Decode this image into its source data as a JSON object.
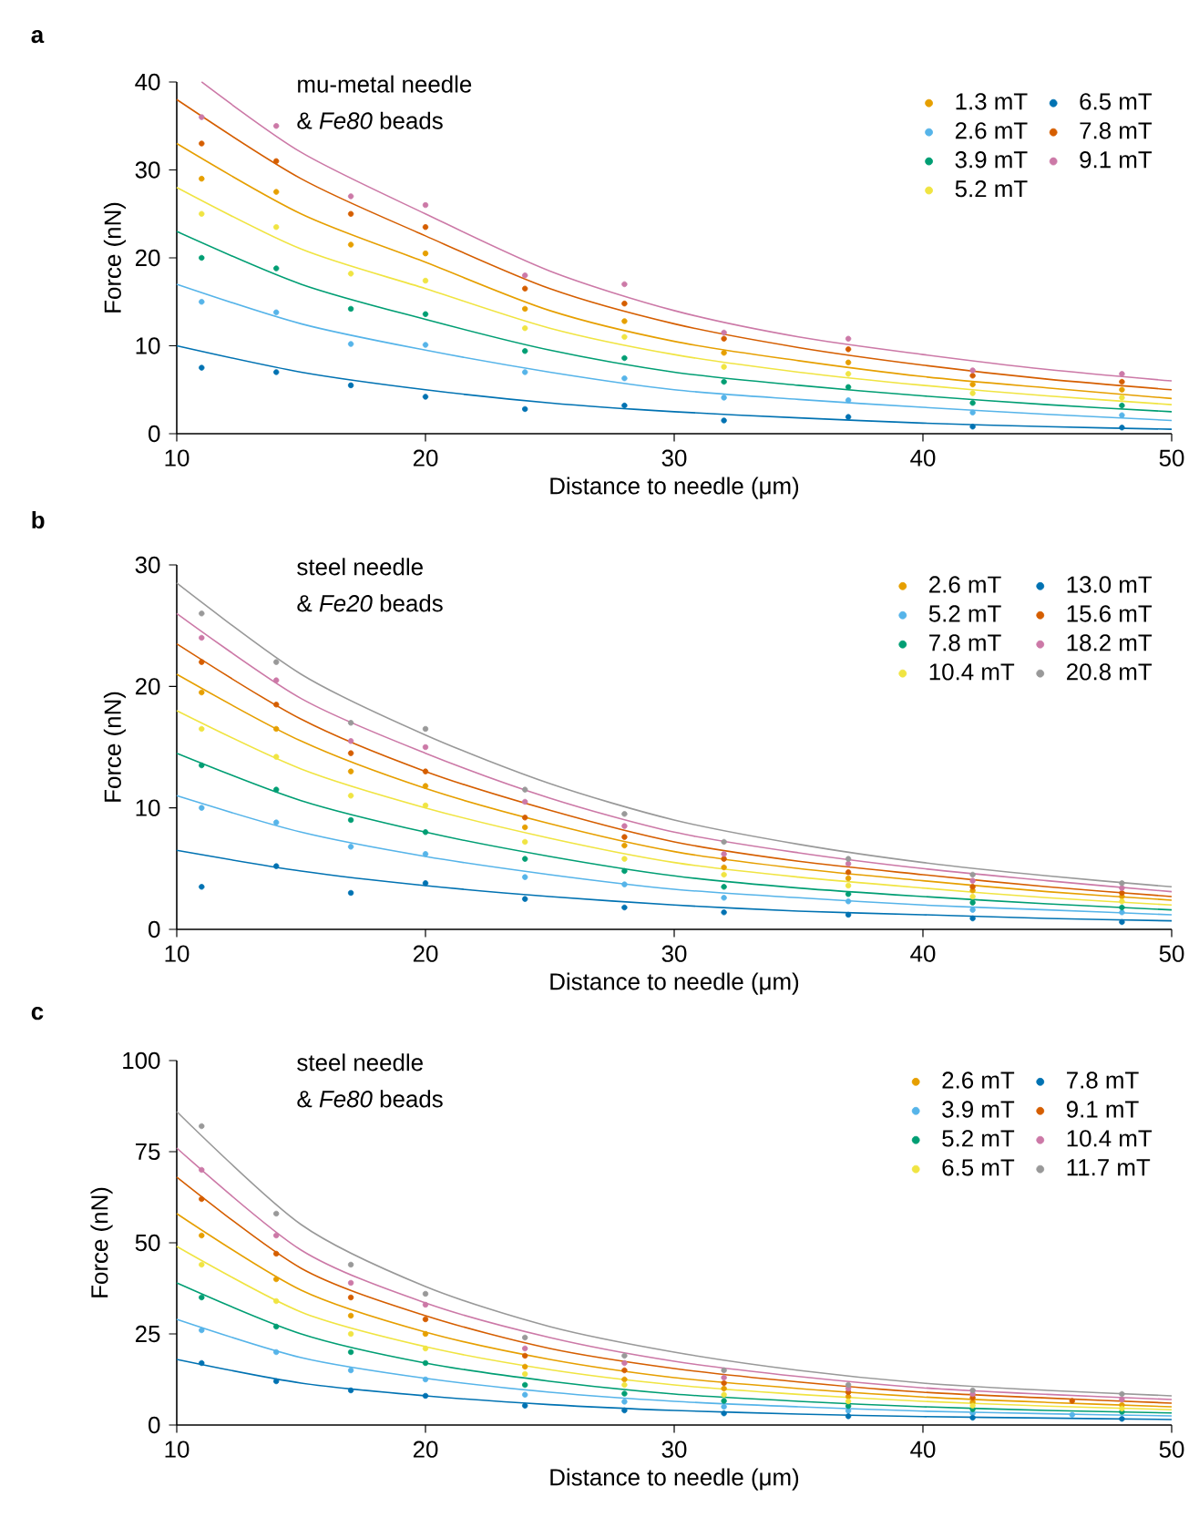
{
  "chart_data": [
    {
      "type": "scatter",
      "title": "a",
      "xlabel": "Distance to needle (μm)",
      "ylabel": "Force (nN)",
      "annotations": [
        "mu-metal needle",
        "& *Fe80* beads"
      ],
      "xlim": [
        10,
        50
      ],
      "ylim": [
        0,
        40
      ],
      "xticks": [
        10,
        20,
        30,
        40,
        50
      ],
      "yticks": [
        0,
        10,
        20,
        30,
        40
      ],
      "legend": "top right",
      "series": [
        {
          "name": "1.3 mT",
          "marker": "circle",
          "color": "#e69f00",
          "x": [
            11,
            14,
            17,
            20,
            24,
            28,
            32,
            37,
            42,
            48
          ],
          "values": [
            29,
            27.5,
            21.5,
            20.5,
            14.2,
            12.8,
            9.2,
            8.1,
            5.6,
            5
          ]
        },
        {
          "name": "2.6 mT",
          "marker": "circle",
          "color": "#56b4e9",
          "x": [
            11,
            14,
            17,
            20,
            24,
            28,
            32,
            37,
            42,
            48
          ],
          "values": [
            15,
            13.8,
            10.2,
            10.1,
            7,
            6.3,
            4.1,
            3.8,
            2.4,
            2.1
          ]
        },
        {
          "name": "3.9 mT",
          "marker": "circle",
          "color": "#009e73",
          "x": [
            11,
            14,
            17,
            20,
            24,
            28,
            32,
            37,
            42,
            48
          ],
          "values": [
            20,
            18.8,
            14.2,
            13.6,
            9.4,
            8.6,
            5.9,
            5.3,
            3.5,
            3.2
          ]
        },
        {
          "name": "5.2 mT",
          "marker": "circle",
          "color": "#f0e442",
          "x": [
            11,
            14,
            17,
            20,
            24,
            28,
            32,
            37,
            42,
            48
          ],
          "values": [
            25,
            23.5,
            18.2,
            17.4,
            12,
            11,
            7.6,
            6.8,
            4.6,
            4.1
          ]
        },
        {
          "name": "6.5 mT",
          "marker": "circle",
          "color": "#0072b2",
          "x": [
            11,
            14,
            17,
            20,
            24,
            28,
            32,
            37,
            42,
            48
          ],
          "values": [
            7.5,
            7,
            5.5,
            4.2,
            2.8,
            3.2,
            1.5,
            1.9,
            0.8,
            0.7
          ]
        },
        {
          "name": "7.8 mT",
          "marker": "circle",
          "color": "#d55e00",
          "x": [
            11,
            14,
            17,
            20,
            24,
            28,
            32,
            37,
            42,
            48
          ],
          "values": [
            33,
            31,
            25,
            23.5,
            16.5,
            14.8,
            10.8,
            9.6,
            6.6,
            5.9
          ]
        },
        {
          "name": "9.1 mT",
          "marker": "circle",
          "color": "#cc79a7",
          "x": [
            11,
            14,
            17,
            20,
            24,
            28,
            32,
            37,
            42,
            48
          ],
          "values": [
            36,
            35,
            27,
            26,
            18,
            17,
            11.5,
            10.8,
            7.2,
            6.8
          ]
        },
        {
          "type": "line",
          "marker": "none",
          "color": "#e69f00",
          "x": [
            10,
            15,
            20,
            25,
            30,
            35,
            40,
            45,
            50
          ],
          "values": [
            33,
            25,
            19.5,
            14,
            10.5,
            8.3,
            6.5,
            5.2,
            4
          ]
        },
        {
          "type": "line",
          "marker": "none",
          "color": "#56b4e9",
          "x": [
            10,
            15,
            20,
            25,
            30,
            35,
            40,
            45,
            50
          ],
          "values": [
            17,
            12.5,
            9.5,
            7,
            5,
            3.9,
            3,
            2.2,
            1.5
          ]
        },
        {
          "type": "line",
          "marker": "none",
          "color": "#009e73",
          "x": [
            10,
            15,
            20,
            25,
            30,
            35,
            40,
            45,
            50
          ],
          "values": [
            23,
            17,
            13,
            9.5,
            7,
            5.5,
            4.3,
            3.3,
            2.5
          ]
        },
        {
          "type": "line",
          "marker": "none",
          "color": "#f0e442",
          "x": [
            10,
            15,
            20,
            25,
            30,
            35,
            40,
            45,
            50
          ],
          "values": [
            28,
            21,
            16.5,
            12,
            9,
            7,
            5.5,
            4.3,
            3.3
          ]
        },
        {
          "type": "line",
          "marker": "none",
          "color": "#0072b2",
          "x": [
            10,
            15,
            20,
            25,
            30,
            35,
            40,
            45,
            50
          ],
          "values": [
            10,
            7,
            5,
            3.5,
            2.5,
            1.8,
            1.2,
            0.8,
            0.5
          ]
        },
        {
          "type": "line",
          "marker": "none",
          "color": "#d55e00",
          "x": [
            10,
            15,
            20,
            25,
            30,
            35,
            40,
            45,
            50
          ],
          "values": [
            38,
            29,
            22.5,
            16.5,
            12.5,
            9.8,
            7.8,
            6.2,
            5
          ]
        },
        {
          "type": "line",
          "marker": "none",
          "color": "#cc79a7",
          "x": [
            11,
            15,
            20,
            25,
            30,
            35,
            40,
            45,
            50
          ],
          "values": [
            40,
            32,
            25,
            18.5,
            14,
            11,
            9,
            7.3,
            6
          ]
        }
      ]
    },
    {
      "type": "scatter",
      "title": "b",
      "xlabel": "Distance to needle (μm)",
      "ylabel": "Force (nN)",
      "annotations": [
        "steel needle",
        "& *Fe20* beads"
      ],
      "xlim": [
        10,
        50
      ],
      "ylim": [
        0,
        30
      ],
      "xticks": [
        10,
        20,
        30,
        40,
        50
      ],
      "yticks": [
        0,
        10,
        20,
        30
      ],
      "legend": "top right",
      "series": [
        {
          "name": "2.6 mT",
          "marker": "circle",
          "color": "#e69f00",
          "x": [
            11,
            14,
            17,
            20,
            24,
            28,
            32,
            37,
            42,
            48
          ],
          "values": [
            19.5,
            16.5,
            13,
            11.8,
            8.4,
            6.9,
            5.1,
            4.2,
            3.2,
            2.7
          ]
        },
        {
          "name": "5.2 mT",
          "marker": "circle",
          "color": "#56b4e9",
          "x": [
            11,
            14,
            17,
            20,
            24,
            28,
            32,
            37,
            42,
            48
          ],
          "values": [
            10,
            8.8,
            6.8,
            6.2,
            4.3,
            3.7,
            2.6,
            2.3,
            1.6,
            1.4
          ]
        },
        {
          "name": "7.8 mT",
          "marker": "circle",
          "color": "#009e73",
          "x": [
            11,
            14,
            17,
            20,
            24,
            28,
            32,
            37,
            42,
            48
          ],
          "values": [
            13.5,
            11.5,
            9,
            8,
            5.8,
            4.8,
            3.5,
            2.9,
            2.2,
            1.8
          ]
        },
        {
          "name": "10.4 mT",
          "marker": "circle",
          "color": "#f0e442",
          "x": [
            11,
            14,
            17,
            20,
            24,
            28,
            32,
            37,
            42,
            48
          ],
          "values": [
            16.5,
            14.2,
            11,
            10.2,
            7.2,
            5.8,
            4.5,
            3.6,
            2.7,
            2.3
          ]
        },
        {
          "name": "13.0 mT",
          "marker": "circle",
          "color": "#0072b2",
          "x": [
            11,
            14,
            17,
            20,
            24,
            28,
            32,
            37,
            42,
            48
          ],
          "values": [
            3.5,
            5.2,
            3,
            3.8,
            2.5,
            1.8,
            1.4,
            1.2,
            0.9,
            0.6
          ]
        },
        {
          "name": "15.6 mT",
          "marker": "circle",
          "color": "#d55e00",
          "x": [
            11,
            14,
            17,
            20,
            24,
            28,
            32,
            37,
            42,
            48
          ],
          "values": [
            22,
            18.5,
            14.5,
            13,
            9.2,
            7.6,
            5.8,
            4.7,
            3.5,
            3
          ]
        },
        {
          "name": "18.2 mT",
          "marker": "circle",
          "color": "#cc79a7",
          "x": [
            11,
            14,
            17,
            20,
            24,
            28,
            32,
            37,
            42,
            48
          ],
          "values": [
            24,
            20.5,
            15.5,
            15,
            10.5,
            8.5,
            6.2,
            5.4,
            4,
            3.4
          ]
        },
        {
          "name": "20.8 mT",
          "marker": "circle",
          "color": "#999999",
          "x": [
            11,
            14,
            17,
            20,
            24,
            28,
            32,
            37,
            42,
            48
          ],
          "values": [
            26,
            22,
            17,
            16.5,
            11.5,
            9.5,
            7.2,
            5.8,
            4.5,
            3.8
          ]
        },
        {
          "type": "line",
          "marker": "none",
          "color": "#e69f00",
          "x": [
            10,
            15,
            20,
            25,
            30,
            35,
            40,
            45,
            50
          ],
          "values": [
            21,
            15.5,
            11.6,
            8.7,
            6.4,
            5,
            4,
            3.1,
            2.4
          ]
        },
        {
          "type": "line",
          "marker": "none",
          "color": "#56b4e9",
          "x": [
            10,
            15,
            20,
            25,
            30,
            35,
            40,
            45,
            50
          ],
          "values": [
            11,
            8,
            6,
            4.5,
            3.3,
            2.6,
            2,
            1.6,
            1.2
          ]
        },
        {
          "type": "line",
          "marker": "none",
          "color": "#009e73",
          "x": [
            10,
            15,
            20,
            25,
            30,
            35,
            40,
            45,
            50
          ],
          "values": [
            14.5,
            10.6,
            8,
            6,
            4.4,
            3.4,
            2.7,
            2.1,
            1.6
          ]
        },
        {
          "type": "line",
          "marker": "none",
          "color": "#f0e442",
          "x": [
            10,
            15,
            20,
            25,
            30,
            35,
            40,
            45,
            50
          ],
          "values": [
            18,
            13.2,
            10,
            7.5,
            5.5,
            4.3,
            3.4,
            2.6,
            2
          ]
        },
        {
          "type": "line",
          "marker": "none",
          "color": "#0072b2",
          "x": [
            10,
            15,
            20,
            25,
            30,
            35,
            40,
            45,
            50
          ],
          "values": [
            6.5,
            4.8,
            3.6,
            2.7,
            2,
            1.5,
            1.2,
            0.9,
            0.7
          ]
        },
        {
          "type": "line",
          "marker": "none",
          "color": "#d55e00",
          "x": [
            10,
            15,
            20,
            25,
            30,
            35,
            40,
            45,
            50
          ],
          "values": [
            23.5,
            17.3,
            13,
            9.8,
            7.2,
            5.6,
            4.5,
            3.5,
            2.7
          ]
        },
        {
          "type": "line",
          "marker": "none",
          "color": "#cc79a7",
          "x": [
            10,
            15,
            20,
            25,
            30,
            35,
            40,
            45,
            50
          ],
          "values": [
            26,
            19,
            14.5,
            10.8,
            8,
            6.3,
            5,
            4,
            3.1
          ]
        },
        {
          "type": "line",
          "marker": "none",
          "color": "#999999",
          "x": [
            10,
            15,
            20,
            25,
            30,
            35,
            40,
            45,
            50
          ],
          "values": [
            28.5,
            21,
            16,
            12,
            9,
            7,
            5.5,
            4.4,
            3.5
          ]
        }
      ]
    },
    {
      "type": "scatter",
      "title": "c",
      "xlabel": "Distance to needle (μm)",
      "ylabel": "Force (nN)",
      "annotations": [
        "steel needle",
        "& *Fe80* beads"
      ],
      "xlim": [
        10,
        50
      ],
      "ylim": [
        0,
        100
      ],
      "xticks": [
        10,
        20,
        30,
        40,
        50
      ],
      "yticks": [
        0,
        25,
        50,
        75,
        100
      ],
      "legend": "top right",
      "series": [
        {
          "name": "2.6 mT",
          "marker": "circle",
          "color": "#e69f00",
          "x": [
            11,
            14,
            17,
            20,
            24,
            28,
            32,
            37,
            42,
            48
          ],
          "values": [
            52,
            40,
            30,
            25,
            16,
            12.5,
            10,
            7.8,
            6.3,
            5.5
          ]
        },
        {
          "name": "3.9 mT",
          "marker": "circle",
          "color": "#56b4e9",
          "x": [
            11,
            14,
            17,
            20,
            24,
            28,
            32,
            37,
            42,
            46
          ],
          "values": [
            26,
            20,
            15,
            12.5,
            8.3,
            6.4,
            5,
            3.9,
            3.2,
            2.8
          ]
        },
        {
          "name": "5.2 mT",
          "marker": "circle",
          "color": "#009e73",
          "x": [
            11,
            14,
            17,
            20,
            24,
            28,
            32,
            37,
            42,
            48
          ],
          "values": [
            35,
            27,
            20,
            17,
            11,
            8.6,
            6.6,
            5.2,
            4.3,
            3.6
          ]
        },
        {
          "name": "6.5 mT",
          "marker": "circle",
          "color": "#f0e442",
          "x": [
            11,
            14,
            17,
            20,
            24,
            28,
            32,
            37,
            42,
            48
          ],
          "values": [
            44,
            34,
            25,
            21,
            14,
            11,
            8.3,
            6.5,
            5.3,
            4.5
          ]
        },
        {
          "name": "7.8 mT",
          "marker": "circle",
          "color": "#0072b2",
          "x": [
            11,
            14,
            17,
            20,
            24,
            28,
            32,
            37,
            42,
            48
          ],
          "values": [
            17,
            12,
            9.5,
            8,
            5.3,
            4,
            3.2,
            2.4,
            2,
            1.7
          ]
        },
        {
          "name": "9.1 mT",
          "marker": "circle",
          "color": "#d55e00",
          "x": [
            11,
            14,
            17,
            20,
            24,
            28,
            32,
            37,
            42,
            46
          ],
          "values": [
            62,
            47,
            35,
            29,
            19,
            15,
            11.5,
            9,
            7.5,
            6.6
          ]
        },
        {
          "name": "10.4 mT",
          "marker": "circle",
          "color": "#cc79a7",
          "x": [
            11,
            14,
            17,
            20,
            24,
            28,
            32,
            37,
            42,
            48
          ],
          "values": [
            70,
            52,
            39,
            33,
            21,
            17,
            13,
            10,
            8.5,
            7
          ]
        },
        {
          "name": "11.7 mT",
          "marker": "circle",
          "color": "#999999",
          "x": [
            11,
            14,
            17,
            20,
            24,
            28,
            32,
            37,
            42,
            48
          ],
          "values": [
            82,
            58,
            44,
            36,
            24,
            19,
            15,
            11,
            9.5,
            8.5
          ]
        },
        {
          "type": "line",
          "marker": "none",
          "color": "#e69f00",
          "x": [
            10,
            15,
            20,
            25,
            30,
            35,
            40,
            45,
            50
          ],
          "values": [
            58,
            37,
            25.5,
            18,
            13,
            10,
            7.7,
            6.2,
            5
          ]
        },
        {
          "type": "line",
          "marker": "none",
          "color": "#56b4e9",
          "x": [
            10,
            15,
            20,
            25,
            30,
            35,
            40,
            45,
            50
          ],
          "values": [
            29,
            18.5,
            12.8,
            9,
            6.5,
            5,
            3.8,
            3.1,
            2.5
          ]
        },
        {
          "type": "line",
          "marker": "none",
          "color": "#009e73",
          "x": [
            10,
            15,
            20,
            25,
            30,
            35,
            40,
            45,
            50
          ],
          "values": [
            39,
            25,
            17,
            12,
            8.5,
            6.5,
            5,
            4,
            3.3
          ]
        },
        {
          "type": "line",
          "marker": "none",
          "color": "#f0e442",
          "x": [
            10,
            15,
            20,
            25,
            30,
            35,
            40,
            45,
            50
          ],
          "values": [
            49,
            31,
            21.5,
            15.2,
            11,
            8.4,
            6.5,
            5.2,
            4.2
          ]
        },
        {
          "type": "line",
          "marker": "none",
          "color": "#0072b2",
          "x": [
            10,
            15,
            20,
            25,
            30,
            35,
            40,
            45,
            50
          ],
          "values": [
            18,
            11.5,
            8,
            5.6,
            4,
            3,
            2.3,
            1.9,
            1.5
          ]
        },
        {
          "type": "line",
          "marker": "none",
          "color": "#d55e00",
          "x": [
            10,
            15,
            20,
            25,
            30,
            35,
            40,
            45,
            50
          ],
          "values": [
            68,
            43,
            30,
            21,
            15.5,
            11.8,
            9,
            7.4,
            6
          ]
        },
        {
          "type": "line",
          "marker": "none",
          "color": "#cc79a7",
          "x": [
            10,
            15,
            20,
            25,
            30,
            35,
            40,
            45,
            50
          ],
          "values": [
            76,
            48,
            33.5,
            24,
            17.5,
            13.3,
            10.2,
            8.4,
            7
          ]
        },
        {
          "type": "line",
          "marker": "none",
          "color": "#999999",
          "x": [
            10,
            15,
            20,
            25,
            30,
            35,
            40,
            45,
            50
          ],
          "values": [
            86,
            55,
            38,
            27,
            20,
            15,
            11.5,
            9.5,
            8
          ]
        }
      ]
    }
  ]
}
